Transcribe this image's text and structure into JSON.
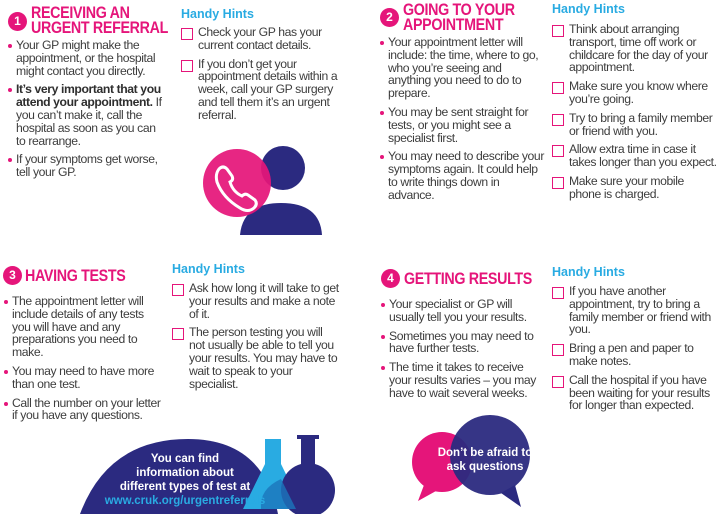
{
  "colors": {
    "accent": "#e5157a",
    "navy": "#2b2a80",
    "hint": "#29abe2"
  },
  "sections": [
    {
      "number": "1",
      "title_lines": [
        "RECEIVING AN",
        "URGENT REFERRAL"
      ],
      "bullets": [
        {
          "text": "Your GP might make the appointment, or the hospital might contact you directly."
        },
        {
          "bold": "It’s very important that you attend your appointment.",
          "text": " If you can’t make it, call the hospital as soon as you can to rearrange."
        },
        {
          "text": "If your symptoms get worse, tell your GP."
        }
      ],
      "hints_title": "Handy Hints",
      "hints": [
        "Check your GP has your current contact details.",
        "If you don’t get your appointment details within a week, call your GP surgery and tell them it’s an urgent referral."
      ],
      "icon": "phone-person-icon"
    },
    {
      "number": "2",
      "title_lines": [
        "GOING TO YOUR",
        "APPOINTMENT"
      ],
      "bullets": [
        {
          "text": "Your appointment letter will include: the time, where to go, who you’re seeing and anything you need to do to prepare."
        },
        {
          "text": "You may be sent straight for tests, or you might see a specialist first."
        },
        {
          "text": "You may need to describe your symptoms again. It could help to write things down in advance."
        }
      ],
      "hints_title": "Handy Hints",
      "hints": [
        "Think about arranging transport, time off work or childcare for the day of your appointment.",
        "Make sure you know where you’re going.",
        "Try to bring a family member or friend with you.",
        "Allow extra time in case it takes longer than you expect.",
        "Make sure your mobile phone is charged."
      ]
    },
    {
      "number": "3",
      "title_lines": [
        "HAVING TESTS"
      ],
      "bullets": [
        {
          "text": "The appointment letter will include details of any tests you will have and any preparations you need to make."
        },
        {
          "text": "You may need to have more than one test."
        },
        {
          "text": "Call the number on your letter if you have any questions."
        }
      ],
      "hints_title": "Handy Hints",
      "hints": [
        "Ask how long it will take to get your results and make a note of it.",
        "The person testing you will not usually be able to tell you your results. You may have to wait to speak to your specialist."
      ],
      "callout": {
        "lines": [
          "You can find",
          "information about",
          "different types of test at"
        ],
        "link": "www.cruk.org/urgentreferrals"
      },
      "icon": "flasks-icon"
    },
    {
      "number": "4",
      "title_lines": [
        "GETTING RESULTS"
      ],
      "bullets": [
        {
          "text": "Your specialist or GP will usually tell you your results."
        },
        {
          "text": "Sometimes you may need to have further tests."
        },
        {
          "text": "The time it takes to receive your results varies – you may have to wait several weeks."
        }
      ],
      "hints_title": "Handy Hints",
      "hints": [
        "If you have another appointment, try to bring a family member or friend with you.",
        "Bring a pen and paper to make notes.",
        "Call the hospital if you have been waiting for your results for longer than expected."
      ],
      "callout": {
        "lines": [
          "Don’t be afraid to",
          "ask questions"
        ]
      },
      "icon": "speech-bubbles-icon"
    }
  ]
}
